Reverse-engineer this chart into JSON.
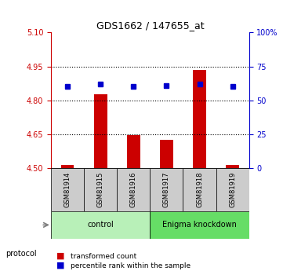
{
  "title": "GDS1662 / 147655_at",
  "samples": [
    "GSM81914",
    "GSM81915",
    "GSM81916",
    "GSM81917",
    "GSM81918",
    "GSM81919"
  ],
  "red_values": [
    4.515,
    4.825,
    4.645,
    4.625,
    4.935,
    4.515
  ],
  "blue_percentiles": [
    60,
    62,
    60,
    61,
    62,
    60
  ],
  "y_min": 4.5,
  "y_max": 5.1,
  "y_ticks": [
    4.5,
    4.65,
    4.8,
    4.95,
    5.1
  ],
  "y_right_ticks": [
    0,
    25,
    50,
    75,
    100
  ],
  "y_right_labels": [
    "0",
    "25",
    "50",
    "75",
    "100%"
  ],
  "dotted_lines": [
    4.65,
    4.8,
    4.95
  ],
  "protocol_groups": [
    {
      "label": "control",
      "start": 0,
      "end": 3,
      "color": "#b8f0b8"
    },
    {
      "label": "Enigma knockdown",
      "start": 3,
      "end": 6,
      "color": "#66dd66"
    }
  ],
  "protocol_label": "protocol",
  "legend": [
    {
      "label": "transformed count",
      "color": "#cc0000",
      "marker": "s"
    },
    {
      "label": "percentile rank within the sample",
      "color": "#0000cc",
      "marker": "s"
    }
  ],
  "bar_color": "#cc0000",
  "dot_color": "#0000cc",
  "left_axis_color": "#cc0000",
  "right_axis_color": "#0000cc",
  "bg_plot": "#ffffff",
  "bg_sample_row": "#cccccc",
  "bar_width": 0.4
}
